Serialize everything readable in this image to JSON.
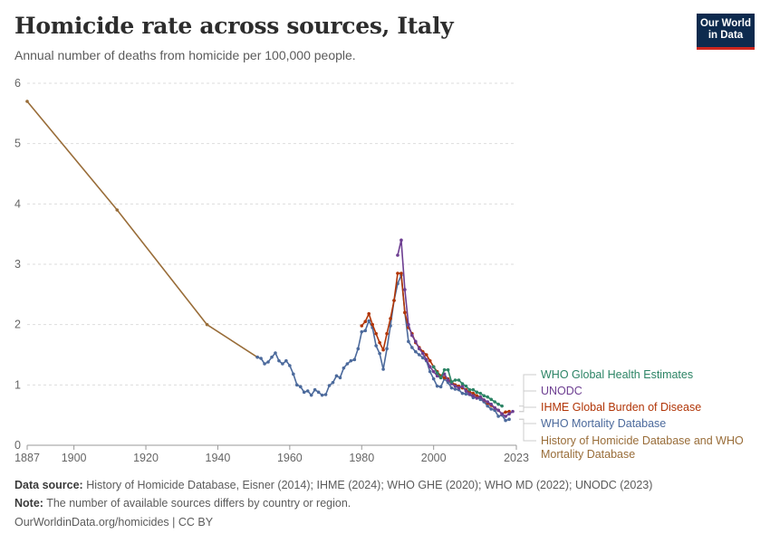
{
  "header": {
    "title": "Homicide rate across sources, Italy",
    "subtitle": "Annual number of deaths from homicide per 100,000 people.",
    "logo_line1": "Our World",
    "logo_line2": "in Data"
  },
  "footer": {
    "source_label": "Data source:",
    "source_text": "History of Homicide Database, Eisner (2014); IHME (2024); WHO GHE (2020); WHO MD (2022); UNODC (2023)",
    "note_label": "Note:",
    "note_text": "The number of available sources differs by country or region.",
    "url": "OurWorldinData.org/homicides | CC BY"
  },
  "colors": {
    "who_ghe": "#2c8465",
    "unodc": "#6d3e91",
    "ihme": "#b13507",
    "who_md": "#4c6a9c",
    "history": "#996d39",
    "grid": "#dddddd",
    "axis": "#666666"
  },
  "chart_data": {
    "type": "line",
    "title": "Homicide rate across sources, Italy",
    "ylim": [
      0,
      6
    ],
    "xlim": [
      1887,
      2023
    ],
    "y_ticks": [
      0,
      1,
      2,
      3,
      4,
      5,
      6
    ],
    "x_ticks": [
      1887,
      1900,
      1920,
      1940,
      1960,
      1980,
      2000,
      2023
    ],
    "grid": "horizontal dashed",
    "legend_placement": "right, labels at line ends",
    "series": [
      {
        "name": "History of Homicide Database and WHO Mortality Database",
        "color_key": "history",
        "x": [
          1887,
          1912,
          1937,
          1951
        ],
        "y": [
          5.7,
          3.9,
          2.0,
          1.46
        ]
      },
      {
        "name": "WHO Mortality Database",
        "color_key": "who_md",
        "x": [
          1951,
          1952,
          1953,
          1954,
          1955,
          1956,
          1957,
          1958,
          1959,
          1960,
          1961,
          1962,
          1963,
          1964,
          1965,
          1966,
          1967,
          1968,
          1969,
          1970,
          1971,
          1972,
          1973,
          1974,
          1975,
          1976,
          1977,
          1978,
          1979,
          1980,
          1981,
          1982,
          1983,
          1984,
          1985,
          1986,
          1987,
          1988,
          1989,
          1990,
          1991,
          1992,
          1993,
          1994,
          1995,
          1996,
          1997,
          1998,
          1999,
          2000,
          2001,
          2002,
          2003,
          2004,
          2005,
          2006,
          2007,
          2008,
          2009,
          2010,
          2011,
          2012,
          2013,
          2014,
          2015,
          2016,
          2017,
          2018,
          2019,
          2020,
          2021
        ],
        "y": [
          1.46,
          1.44,
          1.35,
          1.38,
          1.46,
          1.53,
          1.4,
          1.35,
          1.4,
          1.32,
          1.18,
          1.0,
          0.97,
          0.88,
          0.9,
          0.83,
          0.92,
          0.88,
          0.83,
          0.84,
          0.99,
          1.04,
          1.15,
          1.12,
          1.28,
          1.35,
          1.4,
          1.42,
          1.6,
          1.88,
          1.9,
          2.06,
          1.95,
          1.65,
          1.52,
          1.26,
          1.6,
          1.98,
          2.4,
          2.68,
          2.82,
          2.2,
          1.72,
          1.62,
          1.55,
          1.5,
          1.45,
          1.4,
          1.22,
          1.1,
          0.98,
          0.97,
          1.1,
          1.04,
          0.95,
          0.93,
          0.92,
          0.86,
          0.85,
          0.84,
          0.79,
          0.8,
          0.76,
          0.72,
          0.65,
          0.6,
          0.58,
          0.48,
          0.5,
          0.41,
          0.43
        ]
      },
      {
        "name": "IHME Global Burden of Disease",
        "color_key": "ihme",
        "x": [
          1980,
          1981,
          1982,
          1983,
          1984,
          1985,
          1986,
          1987,
          1988,
          1989,
          1990,
          1991,
          1992,
          1993,
          1994,
          1995,
          1996,
          1997,
          1998,
          1999,
          2000,
          2001,
          2002,
          2003,
          2004,
          2005,
          2006,
          2007,
          2008,
          2009,
          2010,
          2011,
          2012,
          2013,
          2014,
          2015,
          2016,
          2017,
          2018,
          2019,
          2020,
          2021
        ],
        "y": [
          1.98,
          2.05,
          2.18,
          2.0,
          1.85,
          1.7,
          1.58,
          1.85,
          2.1,
          2.4,
          2.85,
          2.85,
          2.2,
          1.95,
          1.85,
          1.7,
          1.62,
          1.55,
          1.5,
          1.4,
          1.3,
          1.22,
          1.15,
          1.12,
          1.1,
          1.05,
          1.0,
          0.98,
          0.95,
          0.92,
          0.88,
          0.86,
          0.82,
          0.8,
          0.75,
          0.7,
          0.66,
          0.62,
          0.58,
          0.52,
          0.55,
          0.56
        ]
      },
      {
        "name": "UNODC",
        "color_key": "unodc",
        "x": [
          1990,
          1991,
          1992,
          1993,
          1994,
          1995,
          1996,
          1997,
          1998,
          1999,
          2000,
          2001,
          2002,
          2003,
          2004,
          2005,
          2006,
          2007,
          2008,
          2009,
          2010,
          2011,
          2012,
          2013,
          2014,
          2015,
          2016,
          2017,
          2018,
          2019,
          2020,
          2021,
          2022
        ],
        "y": [
          3.15,
          3.4,
          2.58,
          2.0,
          1.82,
          1.72,
          1.6,
          1.52,
          1.42,
          1.3,
          1.22,
          1.15,
          1.12,
          1.18,
          1.08,
          1.02,
          0.98,
          0.95,
          0.98,
          0.9,
          0.85,
          0.82,
          0.78,
          0.8,
          0.75,
          0.72,
          0.68,
          0.62,
          0.58,
          0.52,
          0.48,
          0.52,
          0.56
        ]
      },
      {
        "name": "WHO Global Health Estimates",
        "color_key": "who_ghe",
        "x": [
          2000,
          2001,
          2002,
          2003,
          2004,
          2005,
          2006,
          2007,
          2008,
          2009,
          2010,
          2011,
          2012,
          2013,
          2014,
          2015,
          2016,
          2017,
          2018,
          2019
        ],
        "y": [
          1.3,
          1.2,
          1.12,
          1.25,
          1.25,
          1.05,
          1.08,
          1.08,
          1.02,
          0.98,
          0.92,
          0.92,
          0.88,
          0.86,
          0.82,
          0.8,
          0.76,
          0.72,
          0.68,
          0.65
        ]
      }
    ]
  },
  "legend": [
    {
      "name": "WHO Global Health Estimates",
      "color_key": "who_ghe",
      "lines": [
        "WHO Global Health Estimates"
      ]
    },
    {
      "name": "UNODC",
      "color_key": "unodc",
      "lines": [
        "UNODC"
      ]
    },
    {
      "name": "IHME Global Burden of Disease",
      "color_key": "ihme",
      "lines": [
        "IHME Global Burden of Disease"
      ]
    },
    {
      "name": "WHO Mortality Database",
      "color_key": "who_md",
      "lines": [
        "WHO Mortality Database"
      ]
    },
    {
      "name": "History of Homicide Database and WHO Mortality Database",
      "color_key": "history",
      "lines": [
        "History of Homicide Database and WHO",
        "Mortality Database"
      ]
    }
  ]
}
